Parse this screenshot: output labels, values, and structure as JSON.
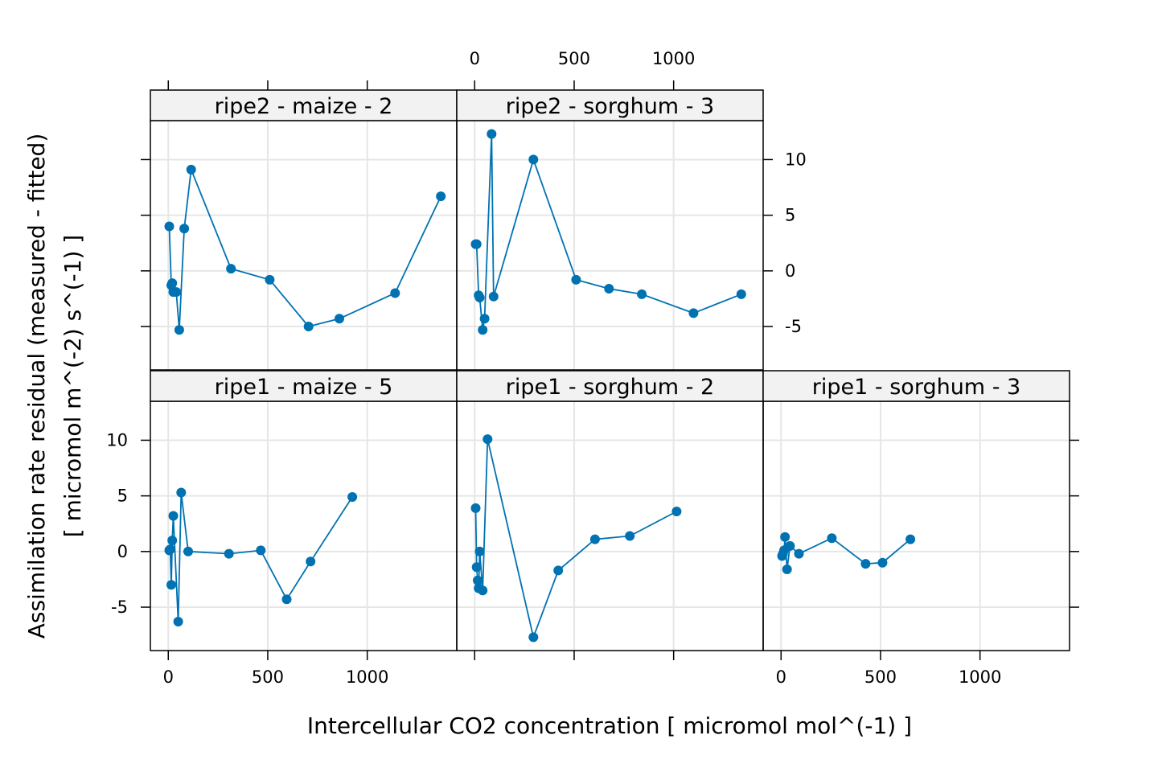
{
  "chart_data": {
    "type": "line",
    "xlabel": "Intercellular CO2 concentration [ micromol mol^(-1) ]",
    "ylabel_line1": "Assimilation rate residual (measured - fitted)",
    "ylabel_line2": "[ micromol m^(-2) s^(-1) ]",
    "xlim": [
      -90,
      1450
    ],
    "ylim": [
      -8.9,
      13.5
    ],
    "x_ticks": [
      0,
      500,
      1000
    ],
    "y_ticks": [
      -5,
      0,
      5,
      10
    ],
    "x_tick_labels": [
      "0",
      "500",
      "1000"
    ],
    "y_tick_labels": [
      "-5",
      "0",
      "5",
      "10"
    ],
    "grid": true,
    "colors": {
      "series": "#0072b2",
      "grid": "#e6e6e6",
      "strip": "#f2f2f2"
    },
    "panels": [
      {
        "strip": "ripe2 - maize - 2",
        "x": [
          5,
          15,
          20,
          25,
          40,
          55,
          80,
          115,
          315,
          510,
          705,
          860,
          1140,
          1370
        ],
        "y": [
          4.0,
          -1.3,
          -1.1,
          -1.9,
          -1.9,
          -5.3,
          3.8,
          9.1,
          0.2,
          -0.8,
          -5.0,
          -4.3,
          -2.0,
          6.7
        ]
      },
      {
        "strip": "ripe2 - sorghum - 3",
        "x": [
          5,
          10,
          20,
          25,
          40,
          50,
          85,
          95,
          295,
          510,
          675,
          840,
          1100,
          1340
        ],
        "y": [
          2.4,
          2.4,
          -2.2,
          -2.4,
          -5.3,
          -4.3,
          12.3,
          -2.3,
          10.0,
          -0.8,
          -1.6,
          -2.1,
          -3.8,
          -2.1
        ]
      },
      {
        "strip": "ripe1 - maize - 5",
        "x": [
          5,
          10,
          15,
          20,
          25,
          50,
          65,
          100,
          305,
          465,
          595,
          715,
          925
        ],
        "y": [
          0.1,
          0.2,
          -3.0,
          1.0,
          3.2,
          -6.3,
          5.3,
          0.0,
          -0.2,
          0.1,
          -4.3,
          -0.9,
          4.9
        ]
      },
      {
        "strip": "ripe1 - sorghum - 2",
        "x": [
          5,
          10,
          15,
          20,
          25,
          40,
          65,
          295,
          420,
          605,
          780,
          1015
        ],
        "y": [
          3.9,
          -1.4,
          -2.6,
          -3.3,
          0.0,
          -3.5,
          10.1,
          -7.7,
          -1.7,
          1.1,
          1.4,
          3.6
        ]
      },
      {
        "strip": "ripe1 - sorghum - 3",
        "x": [
          5,
          10,
          15,
          20,
          30,
          45,
          90,
          255,
          425,
          510,
          650
        ],
        "y": [
          -0.4,
          -0.2,
          0.1,
          1.3,
          -1.6,
          0.5,
          -0.2,
          1.2,
          -1.1,
          -1.0,
          1.1
        ]
      }
    ]
  }
}
